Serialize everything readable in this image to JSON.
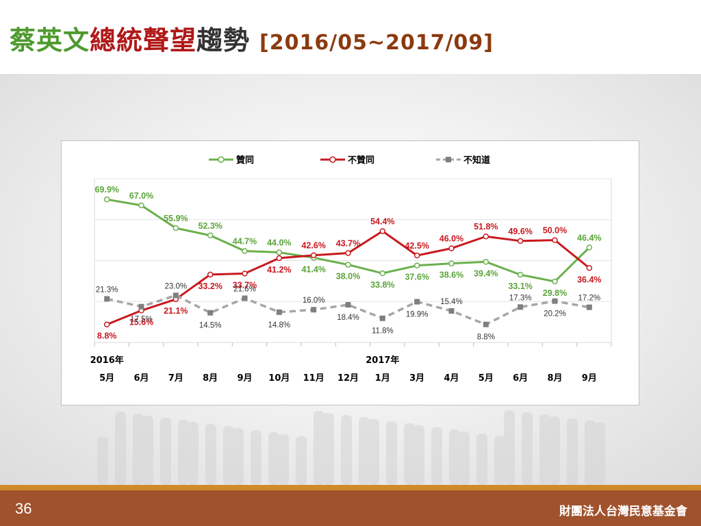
{
  "slide": {
    "title_parts": [
      {
        "text": "蔡英文",
        "color": "#4e9a2f"
      },
      {
        "text": "總統聲望",
        "color": "#b01818"
      },
      {
        "text": "趨勢",
        "color": "#333333"
      }
    ],
    "period": "[2016/05~2017/09]",
    "period_color": "#8b3a0f",
    "page_number": "36",
    "organization": "財團法人台灣民意基金會"
  },
  "chart_data": {
    "type": "line",
    "categories": [
      "5月",
      "6月",
      "7月",
      "8月",
      "9月",
      "10月",
      "11月",
      "12月",
      "1月",
      "3月",
      "4月",
      "5月",
      "6月",
      "8月",
      "9月"
    ],
    "year_labels": [
      {
        "index": 0,
        "text": "2016年"
      },
      {
        "index": 8,
        "text": "2017年"
      }
    ],
    "ylim": [
      0,
      80
    ],
    "gridlines": [
      20,
      40,
      60,
      80
    ],
    "legend_position": "top",
    "series": [
      {
        "name": "贊同",
        "color": "#6ab04c",
        "label_color": "#5aa33a",
        "dashed": false,
        "values": [
          69.9,
          67.0,
          55.9,
          52.3,
          44.7,
          44.0,
          41.4,
          38.0,
          33.8,
          37.6,
          38.6,
          39.4,
          33.1,
          29.8,
          46.4
        ],
        "labels": [
          "69.9%",
          "67.0%",
          "55.9%",
          "52.3%",
          "44.7%",
          "44.0%",
          "41.4%",
          "38.0%",
          "33.8%",
          "37.6%",
          "38.6%",
          "39.4%",
          "33.1%",
          "29.8%",
          "46.4%"
        ]
      },
      {
        "name": "不贊同",
        "color": "#c8181e",
        "label_color": "#c8181e",
        "dashed": false,
        "values": [
          8.8,
          15.6,
          21.1,
          33.2,
          33.7,
          41.2,
          42.6,
          43.7,
          54.4,
          42.5,
          46.0,
          51.8,
          49.6,
          50.0,
          36.4
        ],
        "labels": [
          "8.8%",
          "15.6%",
          "21.1%",
          "33.2%",
          "33.7%",
          "41.2%",
          "42.6%",
          "43.7%",
          "54.4%",
          "42.5%",
          "46.0%",
          "51.8%",
          "49.6%",
          "50.0%",
          "36.4%"
        ]
      },
      {
        "name": "不知道",
        "color": "#a6a6a6",
        "label_color": "#333333",
        "dashed": true,
        "values": [
          21.3,
          17.5,
          23.0,
          14.5,
          21.6,
          14.8,
          16.0,
          18.4,
          11.8,
          19.9,
          15.4,
          8.8,
          17.3,
          20.2,
          17.2
        ],
        "labels": [
          "21.3%",
          "17.5%",
          "23.0%",
          "14.5%",
          "21.6%",
          "14.8%",
          "16.0%",
          "18.4%",
          "11.8%",
          "19.9%",
          "15.4%",
          "8.8%",
          "17.3%",
          "20.2%",
          "17.2%"
        ]
      }
    ]
  }
}
